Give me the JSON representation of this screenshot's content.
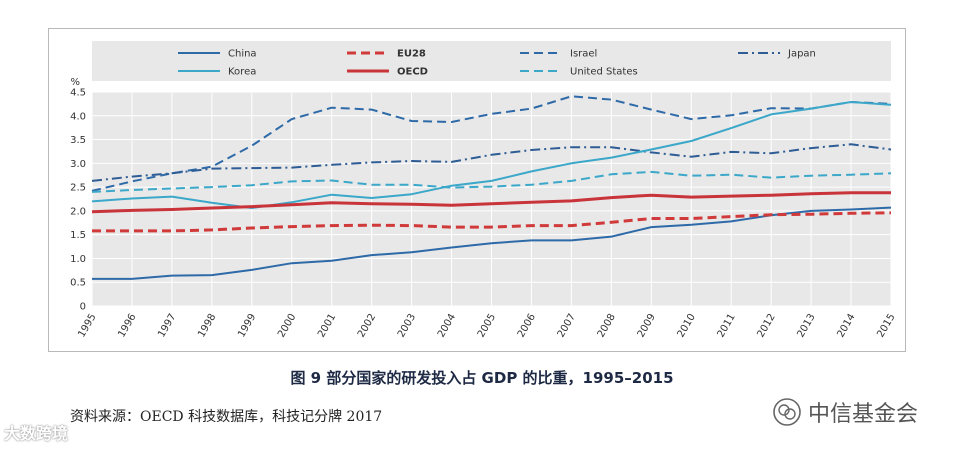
{
  "caption": "图 9 部分国家的研发投入占 GDP 的比重，1995–2015",
  "source": "资料来源：OECD 科技数据库，科技记分牌 2017",
  "watermark_left": "大数跨境",
  "watermark_right": "中信基金会",
  "chart_data": {
    "type": "line",
    "title": "",
    "ylabel": "%",
    "xlabel": "",
    "ylim": [
      0,
      4.5
    ],
    "yticks": [
      "0",
      "0.5",
      "1.0",
      "1.5",
      "2.0",
      "2.5",
      "3.0",
      "3.5",
      "4.0",
      "4.5"
    ],
    "yticks_values": [
      0,
      0.5,
      1.0,
      1.5,
      2.0,
      2.5,
      3.0,
      3.5,
      4.0,
      4.5
    ],
    "grid": true,
    "legend_position": "top",
    "x": [
      "1995",
      "1996",
      "1997",
      "1998",
      "1999",
      "2000",
      "2001",
      "2002",
      "2003",
      "2004",
      "2005",
      "2006",
      "2007",
      "2008",
      "2009",
      "2010",
      "2011",
      "2012",
      "2013",
      "2014",
      "2015"
    ],
    "series": [
      {
        "name": "China",
        "color": "#2e6aa8",
        "style": "solid",
        "values": [
          0.57,
          0.57,
          0.64,
          0.65,
          0.76,
          0.9,
          0.95,
          1.07,
          1.13,
          1.23,
          1.32,
          1.38,
          1.38,
          1.46,
          1.66,
          1.71,
          1.78,
          1.91,
          2.0,
          2.03,
          2.07
        ]
      },
      {
        "name": "EU28",
        "color": "#d03a3a",
        "style": "dash",
        "values": [
          1.58,
          1.58,
          1.58,
          1.6,
          1.64,
          1.67,
          1.69,
          1.7,
          1.69,
          1.66,
          1.66,
          1.69,
          1.69,
          1.76,
          1.84,
          1.84,
          1.88,
          1.92,
          1.93,
          1.95,
          1.96
        ]
      },
      {
        "name": "Israel",
        "color": "#2e6aa8",
        "style": "dash",
        "values": [
          2.42,
          2.62,
          2.79,
          2.93,
          3.37,
          3.93,
          4.17,
          4.13,
          3.89,
          3.87,
          4.04,
          4.15,
          4.41,
          4.34,
          4.13,
          3.93,
          4.01,
          4.16,
          4.15,
          4.29,
          4.25
        ]
      },
      {
        "name": "Japan",
        "color": "#2e5c95",
        "style": "dashdot",
        "values": [
          2.63,
          2.72,
          2.79,
          2.89,
          2.9,
          2.91,
          2.97,
          3.02,
          3.05,
          3.03,
          3.18,
          3.28,
          3.34,
          3.34,
          3.23,
          3.14,
          3.24,
          3.21,
          3.32,
          3.4,
          3.29
        ]
      },
      {
        "name": "Korea",
        "color": "#3ba7c9",
        "style": "solid",
        "values": [
          2.2,
          2.26,
          2.3,
          2.17,
          2.06,
          2.18,
          2.34,
          2.27,
          2.35,
          2.53,
          2.63,
          2.83,
          3.0,
          3.12,
          3.29,
          3.47,
          3.74,
          4.03,
          4.15,
          4.29,
          4.23
        ]
      },
      {
        "name": "OECD",
        "color": "#c8343a",
        "style": "solid",
        "values": [
          1.98,
          2.01,
          2.03,
          2.06,
          2.09,
          2.13,
          2.17,
          2.15,
          2.14,
          2.12,
          2.15,
          2.18,
          2.21,
          2.28,
          2.33,
          2.29,
          2.31,
          2.33,
          2.36,
          2.38,
          2.38
        ]
      },
      {
        "name": "United States",
        "color": "#3ba7c9",
        "style": "dash",
        "values": [
          2.4,
          2.44,
          2.47,
          2.5,
          2.54,
          2.62,
          2.64,
          2.55,
          2.55,
          2.49,
          2.51,
          2.55,
          2.63,
          2.77,
          2.82,
          2.74,
          2.76,
          2.7,
          2.74,
          2.76,
          2.79
        ]
      }
    ]
  }
}
